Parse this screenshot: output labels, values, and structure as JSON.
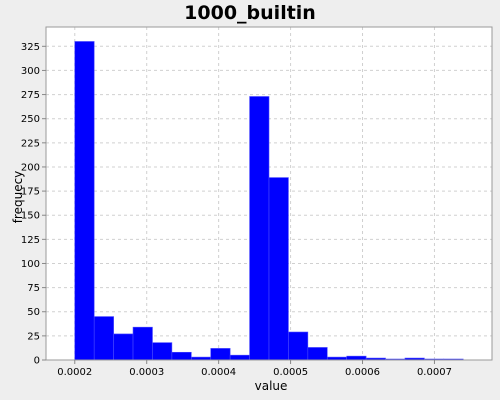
{
  "chart_data": {
    "type": "bar",
    "title": "1000_builtin",
    "xlabel": "value",
    "ylabel": "frequecy",
    "xlim": [
      0.00016,
      0.00078
    ],
    "ylim": [
      0,
      345
    ],
    "xticks": [
      "0.0002",
      "0.0003",
      "0.0004",
      "0.0005",
      "0.0006",
      "0.0007"
    ],
    "yticks": [
      "0",
      "25",
      "50",
      "75",
      "100",
      "125",
      "150",
      "175",
      "200",
      "225",
      "250",
      "275",
      "300",
      "325"
    ],
    "grid": true,
    "bar_color": "#0000ff",
    "bin_edges": [
      0.0002,
      0.000227,
      0.000254,
      0.000281,
      0.000308,
      0.000335,
      0.000362,
      0.000389,
      0.000416,
      0.000443,
      0.00047,
      0.000497,
      0.000524,
      0.000551,
      0.000578,
      0.000605,
      0.000632,
      0.000659,
      0.000686,
      0.000713,
      0.00074
    ],
    "values": [
      330,
      45,
      27,
      34,
      18,
      8,
      3,
      12,
      5,
      273,
      189,
      29,
      13,
      3,
      4,
      2,
      1,
      2,
      1,
      1
    ]
  },
  "colors": {
    "background": "#eeeeee",
    "plot_background": "#ffffff",
    "bar": "#0000ff",
    "grid": "#d0d0d0"
  }
}
